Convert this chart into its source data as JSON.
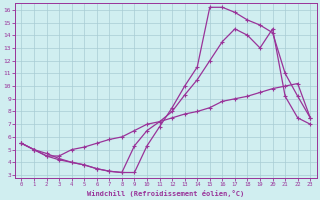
{
  "xlabel": "Windchill (Refroidissement éolien,°C)",
  "bg_color": "#d0eef0",
  "line_color": "#993399",
  "grid_color": "#a8ccd4",
  "xlim": [
    -0.5,
    23.5
  ],
  "ylim": [
    2.8,
    16.5
  ],
  "xticks": [
    0,
    1,
    2,
    3,
    4,
    5,
    6,
    7,
    8,
    9,
    10,
    11,
    12,
    13,
    14,
    15,
    16,
    17,
    18,
    19,
    20,
    21,
    22,
    23
  ],
  "yticks": [
    3,
    4,
    5,
    6,
    7,
    8,
    9,
    10,
    11,
    12,
    13,
    14,
    15,
    16
  ],
  "line1_x": [
    0,
    1,
    2,
    3,
    4,
    5,
    6,
    7,
    8,
    9,
    10,
    11,
    12,
    13,
    14,
    15,
    16,
    17,
    18,
    19,
    20,
    21,
    22,
    23
  ],
  "line1_y": [
    5.5,
    5.0,
    4.7,
    4.3,
    4.0,
    3.8,
    3.5,
    3.3,
    3.2,
    5.3,
    6.5,
    7.2,
    8.0,
    9.3,
    10.5,
    12.0,
    13.5,
    14.5,
    14.0,
    13.0,
    14.5,
    9.2,
    7.5,
    7.0
  ],
  "line2_x": [
    0,
    1,
    2,
    3,
    4,
    5,
    6,
    7,
    8,
    9,
    10,
    11,
    12,
    13,
    14,
    15,
    16,
    17,
    18,
    19,
    20,
    21,
    22,
    23
  ],
  "line2_y": [
    5.5,
    5.0,
    4.5,
    4.2,
    4.0,
    3.8,
    3.5,
    3.3,
    3.2,
    3.2,
    5.3,
    6.8,
    8.3,
    10.0,
    11.5,
    16.2,
    16.2,
    15.8,
    15.2,
    14.8,
    14.2,
    11.0,
    9.2,
    7.5
  ],
  "line3_x": [
    0,
    1,
    2,
    3,
    4,
    5,
    6,
    7,
    8,
    9,
    10,
    11,
    12,
    13,
    14,
    15,
    16,
    17,
    18,
    19,
    20,
    21,
    22,
    23
  ],
  "line3_y": [
    5.5,
    5.0,
    4.5,
    4.5,
    5.0,
    5.2,
    5.5,
    5.8,
    6.0,
    6.5,
    7.0,
    7.2,
    7.5,
    7.8,
    8.0,
    8.3,
    8.8,
    9.0,
    9.2,
    9.5,
    9.8,
    10.0,
    10.2,
    7.5
  ]
}
